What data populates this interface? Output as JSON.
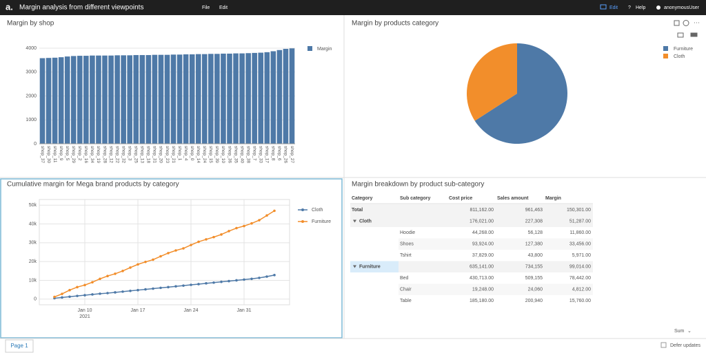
{
  "header": {
    "logo": "a.",
    "title": "Margin analysis from different viewpoints",
    "menu": [
      "File",
      "Edit"
    ],
    "right": [
      "Edit",
      "Help",
      "anonymousUser"
    ]
  },
  "chart_data": [
    {
      "type": "bar",
      "title": "Margin by shop",
      "legend": "right",
      "series": [
        {
          "name": "Margin",
          "color": "#4e79a7"
        }
      ],
      "categories": [
        "shop_37",
        "shop_30",
        "shop_11",
        "shop_9",
        "shop_5",
        "shop_29",
        "shop_2",
        "shop_16",
        "shop_34",
        "shop_19",
        "shop_28",
        "shop_12",
        "shop_22",
        "shop_32",
        "shop_3",
        "shop_25",
        "shop_13",
        "shop_18",
        "shop_31",
        "shop_20",
        "shop_23",
        "shop_21",
        "shop_1",
        "shop_4",
        "shop_0",
        "shop_14",
        "shop_24",
        "shop_15",
        "shop_39",
        "shop_10",
        "shop_36",
        "shop_35",
        "shop_40",
        "shop_38",
        "shop_7",
        "shop_33",
        "shop_17",
        "shop_8",
        "shop_6",
        "shop_26",
        "shop_27"
      ],
      "values": [
        3580,
        3590,
        3600,
        3620,
        3650,
        3670,
        3680,
        3680,
        3690,
        3690,
        3690,
        3690,
        3700,
        3700,
        3700,
        3710,
        3710,
        3710,
        3720,
        3720,
        3720,
        3730,
        3730,
        3740,
        3740,
        3750,
        3750,
        3760,
        3760,
        3770,
        3770,
        3780,
        3780,
        3790,
        3800,
        3810,
        3830,
        3870,
        3920,
        3970,
        3990
      ],
      "ylim": [
        0,
        4200
      ],
      "yticks": [
        0,
        1000,
        2000,
        3000,
        4000
      ],
      "grid": true
    },
    {
      "type": "pie",
      "title": "Margin by products category",
      "legend": "top-right",
      "categories": [
        "Furniture",
        "Cloth"
      ],
      "values": [
        99014,
        51287
      ],
      "colors": [
        "#4e79a7",
        "#f28e2b"
      ]
    },
    {
      "type": "line",
      "title": "Cumulative margin for Mega brand products by category",
      "legend": "right",
      "x": [
        "2021-01-06",
        "2021-01-07",
        "2021-01-08",
        "2021-01-09",
        "2021-01-10",
        "2021-01-11",
        "2021-01-12",
        "2021-01-13",
        "2021-01-14",
        "2021-01-15",
        "2021-01-16",
        "2021-01-17",
        "2021-01-18",
        "2021-01-19",
        "2021-01-20",
        "2021-01-21",
        "2021-01-22",
        "2021-01-23",
        "2021-01-24",
        "2021-01-25",
        "2021-01-26",
        "2021-01-27",
        "2021-01-28",
        "2021-01-29",
        "2021-01-30",
        "2021-01-31",
        "2021-02-01",
        "2021-02-02",
        "2021-02-03",
        "2021-02-04"
      ],
      "series": [
        {
          "name": "Cloth",
          "color": "#4e79a7",
          "values": [
            500,
            900,
            1300,
            1700,
            2100,
            2500,
            2900,
            3200,
            3600,
            4000,
            4400,
            4800,
            5200,
            5600,
            6000,
            6400,
            6800,
            7200,
            7600,
            8000,
            8400,
            8800,
            9200,
            9600,
            10000,
            10400,
            10800,
            11300,
            12000,
            12800
          ]
        },
        {
          "name": "Furniture",
          "color": "#f28e2b",
          "values": [
            1200,
            2800,
            4800,
            6400,
            7500,
            9000,
            10800,
            12300,
            13500,
            15000,
            16800,
            18500,
            19800,
            21000,
            22800,
            24500,
            25900,
            27000,
            28800,
            30500,
            31800,
            33000,
            34400,
            36200,
            37800,
            38900,
            40300,
            42000,
            44500,
            47000
          ]
        }
      ],
      "xlim": [
        "2021-01-04",
        "2021-02-06"
      ],
      "xticks": [
        {
          "value": "2021-01-10",
          "label": "Jan 10"
        },
        {
          "value": "2021-01-17",
          "label": "Jan 17"
        },
        {
          "value": "2021-01-24",
          "label": "Jan 24"
        },
        {
          "value": "2021-01-31",
          "label": "Jan 31"
        }
      ],
      "x_year": "2021",
      "ylim": [
        -3000,
        53000
      ],
      "yticks": [
        0,
        {
          "value": 10000,
          "label": "10k"
        },
        {
          "value": 20000,
          "label": "20k"
        },
        {
          "value": 30000,
          "label": "30k"
        },
        {
          "value": 40000,
          "label": "40k"
        },
        {
          "value": 50000,
          "label": "50k"
        }
      ],
      "grid": true
    }
  ],
  "table": {
    "title": "Margin breakdown by product sub-category",
    "columns": [
      "Category",
      "Sub category",
      "Cost price",
      "Sales amount",
      "Margin"
    ],
    "rows": [
      {
        "category": "Total",
        "cost_price": "811,162.00",
        "sales_amount": "961,463",
        "margin": "150,301.00"
      },
      {
        "category": "Cloth",
        "cost_price": "176,021.00",
        "sales_amount": "227,308",
        "margin": "51,287.00"
      },
      {
        "sub_category": "Hoodie",
        "cost_price": "44,268.00",
        "sales_amount": "56,128",
        "margin": "11,860.00"
      },
      {
        "sub_category": "Shoes",
        "cost_price": "93,924.00",
        "sales_amount": "127,380",
        "margin": "33,456.00"
      },
      {
        "sub_category": "Tshirt",
        "cost_price": "37,829.00",
        "sales_amount": "43,800",
        "margin": "5,971.00"
      },
      {
        "category": "Furniture",
        "cost_price": "635,141.00",
        "sales_amount": "734,155",
        "margin": "99,014.00"
      },
      {
        "sub_category": "Bed",
        "cost_price": "430,713.00",
        "sales_amount": "509,155",
        "margin": "78,442.00"
      },
      {
        "sub_category": "Chair",
        "cost_price": "19,248.00",
        "sales_amount": "24,060",
        "margin": "4,812.00"
      },
      {
        "sub_category": "Table",
        "cost_price": "185,180.00",
        "sales_amount": "200,940",
        "margin": "15,760.00"
      }
    ],
    "aggregation": "Sum"
  },
  "footer": {
    "page_tab": "Page 1",
    "defer": "Defer updates"
  }
}
